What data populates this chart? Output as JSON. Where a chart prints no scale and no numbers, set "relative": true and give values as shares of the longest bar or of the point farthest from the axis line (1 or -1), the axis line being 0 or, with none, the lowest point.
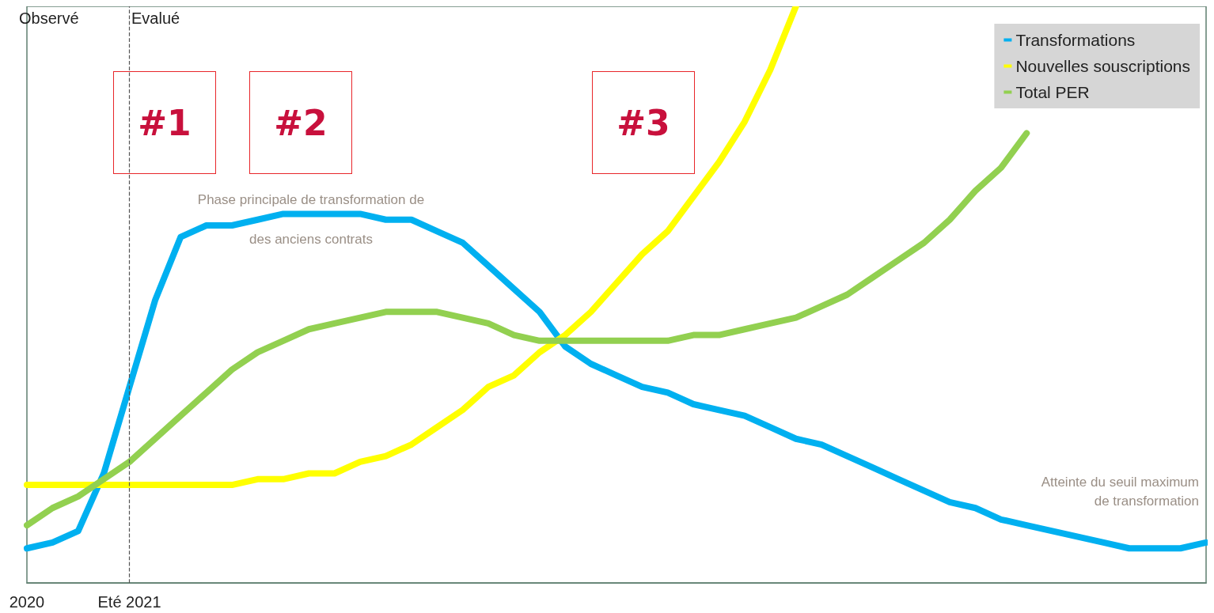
{
  "chart_data": {
    "type": "line",
    "relative": true,
    "categories": [
      "2020",
      null,
      null,
      null,
      "Eté 2021",
      null,
      null,
      null,
      null,
      null,
      null,
      null,
      null,
      null,
      null,
      null,
      null,
      null,
      null,
      null,
      null,
      null,
      null,
      null,
      null,
      null,
      null,
      null,
      null,
      null,
      null,
      null,
      null,
      null,
      null,
      null,
      null,
      null,
      null,
      null,
      null,
      null,
      null,
      null,
      null,
      null,
      null
    ],
    "series": [
      {
        "name": "Transformations",
        "color": "#00b0f0",
        "values": [
          0.06,
          0.07,
          0.09,
          0.19,
          0.34,
          0.49,
          0.6,
          0.62,
          0.62,
          0.63,
          0.64,
          0.64,
          0.64,
          0.64,
          0.63,
          0.63,
          0.61,
          0.59,
          0.55,
          0.51,
          0.47,
          0.41,
          0.38,
          0.36,
          0.34,
          0.33,
          0.31,
          0.3,
          0.29,
          0.27,
          0.25,
          0.24,
          0.22,
          0.2,
          0.18,
          0.16,
          0.14,
          0.13,
          0.11,
          0.1,
          0.09,
          0.08,
          0.07,
          0.06,
          0.06,
          0.06,
          0.07
        ]
      },
      {
        "name": "Nouvelles souscriptions",
        "color": "#ffff00",
        "values": [
          0.17,
          0.17,
          0.17,
          0.17,
          0.17,
          0.17,
          0.17,
          0.17,
          0.17,
          0.18,
          0.18,
          0.19,
          0.19,
          0.21,
          0.22,
          0.24,
          0.27,
          0.3,
          0.34,
          0.36,
          0.4,
          0.43,
          0.47,
          0.52,
          0.57,
          0.61,
          0.67,
          0.73,
          0.8,
          0.89,
          1.0,
          null,
          null,
          null,
          null,
          null,
          null,
          null,
          null,
          null,
          null,
          null,
          null,
          null,
          null,
          null,
          null
        ]
      },
      {
        "name": "Total PER",
        "color": "#92d050",
        "values": [
          0.1,
          0.13,
          0.15,
          0.18,
          0.21,
          0.25,
          0.29,
          0.33,
          0.37,
          0.4,
          0.42,
          0.44,
          0.45,
          0.46,
          0.47,
          0.47,
          0.47,
          0.46,
          0.45,
          0.43,
          0.42,
          0.42,
          0.42,
          0.42,
          0.42,
          0.42,
          0.43,
          0.43,
          0.44,
          0.45,
          0.46,
          0.48,
          0.5,
          0.53,
          0.56,
          0.59,
          0.63,
          0.68,
          0.72,
          0.78,
          null,
          null,
          null,
          null,
          null,
          null,
          null
        ]
      }
    ],
    "legend": "top right",
    "grid": false,
    "marker": "none",
    "ref_lines": [
      {
        "axis": "x",
        "value": "Eté 2021",
        "line_style": "dashed",
        "color": "#555555"
      }
    ],
    "annotations": [
      "Observé",
      "Evalué",
      "#1",
      "#2",
      "#3",
      "Phase principale de transformation de\ndes anciens contrats",
      "Atteinte du seuil maximum\nde transformation"
    ]
  }
}
